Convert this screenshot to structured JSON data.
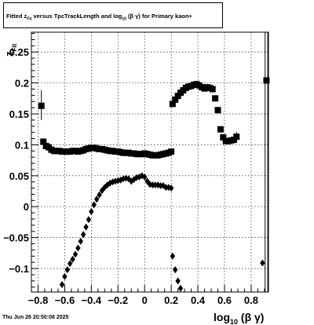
{
  "chart_data": {
    "type": "scatter",
    "title": {
      "prefix": "Fitted  z",
      "sub1": "Fit",
      "middle": "  versus TpcTrackLength and log",
      "sub2": "10",
      "suffix": " (β  γ) for Primary kaon+"
    },
    "xlabel": {
      "main": "log",
      "sub": "10",
      "rest": " (β γ)"
    },
    "ylabel": {
      "main": "z",
      "sub": "Fit"
    },
    "xlim": [
      -0.85,
      0.93
    ],
    "ylim": [
      -0.138,
      0.282
    ],
    "grid": true,
    "x_ticks": [
      {
        "v": -0.8,
        "label": "−0.8"
      },
      {
        "v": -0.6,
        "label": "−0.6"
      },
      {
        "v": -0.4,
        "label": "−0.4"
      },
      {
        "v": -0.2,
        "label": "−0.2"
      },
      {
        "v": 0.0,
        "label": "0"
      },
      {
        "v": 0.2,
        "label": "0.2"
      },
      {
        "v": 0.4,
        "label": "0.4"
      },
      {
        "v": 0.6,
        "label": "0.6"
      },
      {
        "v": 0.8,
        "label": "0.8"
      }
    ],
    "y_ticks": [
      {
        "v": -0.1,
        "label": "−0.1"
      },
      {
        "v": -0.05,
        "label": "−0.05"
      },
      {
        "v": 0.0,
        "label": "0"
      },
      {
        "v": 0.05,
        "label": "0.05"
      },
      {
        "v": 0.1,
        "label": "0.1"
      },
      {
        "v": 0.15,
        "label": "0.15"
      },
      {
        "v": 0.2,
        "label": "0.2"
      },
      {
        "v": 0.25,
        "label": "0.25"
      }
    ],
    "series": [
      {
        "marker": "square",
        "points": [
          [
            -0.775,
            0.163
          ],
          [
            -0.76,
            0.105
          ],
          [
            -0.74,
            0.098
          ],
          [
            -0.72,
            0.096
          ],
          [
            -0.7,
            0.092
          ],
          [
            -0.68,
            0.09
          ],
          [
            -0.66,
            0.09
          ],
          [
            -0.64,
            0.09
          ],
          [
            -0.62,
            0.089
          ],
          [
            -0.6,
            0.089
          ],
          [
            -0.58,
            0.089
          ],
          [
            -0.56,
            0.089
          ],
          [
            -0.54,
            0.09
          ],
          [
            -0.52,
            0.09
          ],
          [
            -0.5,
            0.089
          ],
          [
            -0.48,
            0.09
          ],
          [
            -0.46,
            0.091
          ],
          [
            -0.44,
            0.093
          ],
          [
            -0.42,
            0.094
          ],
          [
            -0.4,
            0.095
          ],
          [
            -0.38,
            0.095
          ],
          [
            -0.36,
            0.094
          ],
          [
            -0.34,
            0.093
          ],
          [
            -0.32,
            0.093
          ],
          [
            -0.3,
            0.092
          ],
          [
            -0.28,
            0.091
          ],
          [
            -0.26,
            0.09
          ],
          [
            -0.24,
            0.09
          ],
          [
            -0.22,
            0.089
          ],
          [
            -0.2,
            0.089
          ],
          [
            -0.18,
            0.088
          ],
          [
            -0.16,
            0.087
          ],
          [
            -0.14,
            0.087
          ],
          [
            -0.12,
            0.087
          ],
          [
            -0.1,
            0.086
          ],
          [
            -0.08,
            0.086
          ],
          [
            -0.06,
            0.085
          ],
          [
            -0.04,
            0.085
          ],
          [
            -0.02,
            0.085
          ],
          [
            0.0,
            0.086
          ],
          [
            0.02,
            0.085
          ],
          [
            0.04,
            0.084
          ],
          [
            0.06,
            0.083
          ],
          [
            0.08,
            0.083
          ],
          [
            0.1,
            0.083
          ],
          [
            0.12,
            0.084
          ],
          [
            0.14,
            0.085
          ],
          [
            0.16,
            0.086
          ],
          [
            0.18,
            0.087
          ],
          [
            0.2,
            0.089
          ],
          [
            0.21,
            0.166
          ],
          [
            0.23,
            0.173
          ],
          [
            0.25,
            0.179
          ],
          [
            0.27,
            0.184
          ],
          [
            0.29,
            0.188
          ],
          [
            0.31,
            0.192
          ],
          [
            0.33,
            0.194
          ],
          [
            0.35,
            0.195
          ],
          [
            0.37,
            0.197
          ],
          [
            0.39,
            0.198
          ],
          [
            0.41,
            0.196
          ],
          [
            0.43,
            0.193
          ],
          [
            0.45,
            0.191
          ],
          [
            0.47,
            0.193
          ],
          [
            0.49,
            0.192
          ],
          [
            0.51,
            0.19
          ],
          [
            0.53,
            0.175
          ],
          [
            0.55,
            0.156
          ],
          [
            0.57,
            0.125
          ],
          [
            0.59,
            0.112
          ],
          [
            0.61,
            0.106
          ],
          [
            0.63,
            0.106
          ],
          [
            0.65,
            0.107
          ],
          [
            0.67,
            0.108
          ],
          [
            0.69,
            0.113
          ],
          [
            0.915,
            0.204
          ]
        ]
      },
      {
        "marker": "circle",
        "points": [
          [
            -0.62,
            -0.126
          ],
          [
            -0.6,
            -0.113
          ],
          [
            -0.58,
            -0.102
          ],
          [
            -0.56,
            -0.092
          ],
          [
            -0.54,
            -0.085
          ],
          [
            -0.52,
            -0.077
          ],
          [
            -0.5,
            -0.067
          ],
          [
            -0.48,
            -0.056
          ],
          [
            -0.46,
            -0.045
          ],
          [
            -0.44,
            -0.033
          ],
          [
            -0.42,
            -0.021
          ],
          [
            -0.4,
            -0.008
          ],
          [
            -0.38,
            0.003
          ],
          [
            -0.36,
            0.012
          ],
          [
            -0.34,
            0.019
          ],
          [
            -0.32,
            0.026
          ],
          [
            -0.3,
            0.031
          ],
          [
            -0.28,
            0.035
          ],
          [
            -0.26,
            0.038
          ],
          [
            -0.24,
            0.04
          ],
          [
            -0.22,
            0.041
          ],
          [
            -0.2,
            0.042
          ],
          [
            -0.18,
            0.043
          ],
          [
            -0.16,
            0.045
          ],
          [
            -0.14,
            0.046
          ],
          [
            -0.12,
            0.045
          ],
          [
            -0.1,
            0.041
          ],
          [
            -0.08,
            0.044
          ],
          [
            -0.06,
            0.047
          ],
          [
            -0.04,
            0.048
          ],
          [
            -0.02,
            0.05
          ],
          [
            0.0,
            0.048
          ],
          [
            0.02,
            0.041
          ],
          [
            0.04,
            0.036
          ],
          [
            0.06,
            0.035
          ],
          [
            0.08,
            0.035
          ],
          [
            0.1,
            0.035
          ],
          [
            0.12,
            0.034
          ],
          [
            0.14,
            0.034
          ],
          [
            0.16,
            0.031
          ],
          [
            0.18,
            0.031
          ],
          [
            0.2,
            0.03
          ],
          [
            0.21,
            -0.08
          ],
          [
            0.23,
            -0.102
          ],
          [
            0.25,
            -0.12
          ],
          [
            0.27,
            -0.132
          ],
          [
            0.885,
            -0.091
          ]
        ]
      }
    ],
    "error_bars": [
      {
        "x": -0.775,
        "y_lo": 0.14,
        "y_hi": 0.188
      },
      {
        "x": 0.905,
        "y_lo": -0.138,
        "y_hi": 0.282
      },
      {
        "x": 0.925,
        "y_lo": -0.138,
        "y_hi": 0.282
      },
      {
        "x": 0.69,
        "y_lo": 0.105,
        "y_hi": 0.121
      }
    ]
  },
  "timestamp": "Thu Jun 26 20:50:08 2025"
}
